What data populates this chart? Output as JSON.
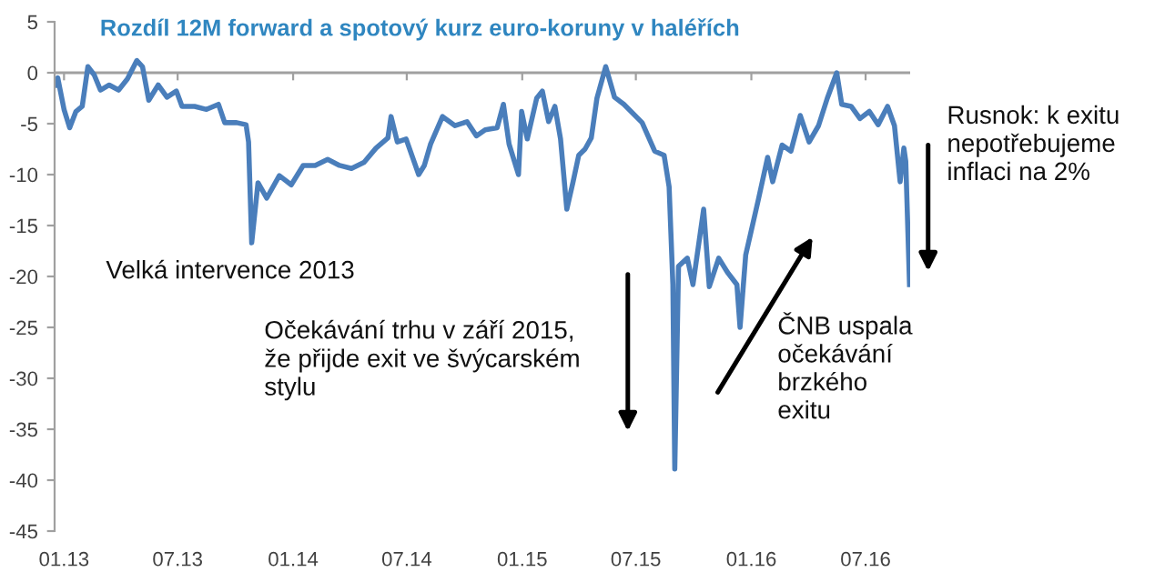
{
  "chart_data": {
    "type": "line",
    "title": "Rozdíl 12M forward a spotový kurz euro-koruny v haléřích",
    "x": [
      "2012-12-18",
      "2012-12-22",
      "2013-01-01",
      "2013-01-10",
      "2013-01-20",
      "2013-01-30",
      "2013-02-08",
      "2013-02-18",
      "2013-02-28",
      "2013-03-14",
      "2013-03-29",
      "2013-04-12",
      "2013-04-27",
      "2013-05-06",
      "2013-05-16",
      "2013-05-31",
      "2013-06-14",
      "2013-06-29",
      "2013-07-08",
      "2013-07-28",
      "2013-08-16",
      "2013-09-04",
      "2013-09-14",
      "2013-10-03",
      "2013-10-18",
      "2013-10-22",
      "2013-10-27",
      "2013-11-06",
      "2013-11-20",
      "2013-12-10",
      "2013-12-29",
      "2014-01-17",
      "2014-02-05",
      "2014-02-25",
      "2014-03-16",
      "2014-04-04",
      "2014-04-24",
      "2014-05-13",
      "2014-06-01",
      "2014-06-06",
      "2014-06-16",
      "2014-06-30",
      "2014-07-20",
      "2014-07-29",
      "2014-08-08",
      "2014-08-27",
      "2014-09-16",
      "2014-10-05",
      "2014-10-20",
      "2014-11-03",
      "2014-11-22",
      "2014-12-02",
      "2014-12-11",
      "2014-12-26",
      "2014-12-31",
      "2015-01-09",
      "2015-01-24",
      "2015-02-02",
      "2015-02-12",
      "2015-02-22",
      "2015-03-03",
      "2015-03-13",
      "2015-03-23",
      "2015-04-01",
      "2015-04-11",
      "2015-04-21",
      "2015-04-30",
      "2015-05-14",
      "2015-05-28",
      "2015-06-12",
      "2015-07-11",
      "2015-07-31",
      "2015-08-15",
      "2015-08-23",
      "2015-08-29",
      "2015-09-01",
      "2015-09-07",
      "2015-09-21",
      "2015-09-30",
      "2015-10-17",
      "2015-10-26",
      "2015-11-10",
      "2015-11-24",
      "2015-12-09",
      "2015-12-14",
      "2015-12-23",
      "2016-01-12",
      "2016-01-27",
      "2016-02-04",
      "2016-02-19",
      "2016-03-04",
      "2016-03-19",
      "2016-04-02",
      "2016-04-17",
      "2016-05-01",
      "2016-05-16",
      "2016-05-24",
      "2016-06-08",
      "2016-06-22",
      "2016-07-07",
      "2016-07-21",
      "2016-08-05",
      "2016-08-16",
      "2016-08-25",
      "2016-08-31",
      "2016-09-03",
      "2016-09-09"
    ],
    "values": [
      -1.2,
      -0.5,
      -3.6,
      -5.4,
      -3.8,
      -3.3,
      0.6,
      -0.2,
      -1.7,
      -1.2,
      -1.7,
      -0.6,
      1.2,
      0.6,
      -2.7,
      -1.2,
      -2.4,
      -1.8,
      -3.3,
      -3.3,
      -3.6,
      -3.1,
      -4.9,
      -4.9,
      -5.1,
      -6.8,
      -16.7,
      -10.8,
      -12.3,
      -10.1,
      -11,
      -9.1,
      -9.1,
      -8.5,
      -9.1,
      -9.4,
      -8.8,
      -7.4,
      -6.4,
      -4.3,
      -6.8,
      -6.5,
      -10,
      -9.1,
      -7,
      -4.3,
      -5.2,
      -4.8,
      -6.2,
      -5.6,
      -5.4,
      -3.1,
      -7,
      -10,
      -3.8,
      -6.5,
      -2.5,
      -1.8,
      -4.8,
      -3.3,
      -6.5,
      -13.4,
      -10.7,
      -8.1,
      -7.5,
      -6.4,
      -2.5,
      0.6,
      -2.4,
      -3.1,
      -4.9,
      -7.7,
      -8.1,
      -11.2,
      -20.8,
      -38.9,
      -19,
      -18.2,
      -20.8,
      -13.4,
      -21,
      -18.2,
      -19.6,
      -20.8,
      -25,
      -17.9,
      -12.5,
      -8.3,
      -10.7,
      -7.1,
      -7.7,
      -4.2,
      -6.8,
      -5.2,
      -2.5,
      0,
      -3.1,
      -3.3,
      -4.5,
      -3.8,
      -5.1,
      -3.3,
      -5.2,
      -10.7,
      -7.4,
      -8.7,
      -20.8
    ],
    "color": "#4a7ebb",
    "xlim": [
      "2012-12-17",
      "2016-09-10"
    ],
    "xticks": [
      {
        "value": "2013-01-01",
        "label": "01.13"
      },
      {
        "value": "2013-07-01",
        "label": "07.13"
      },
      {
        "value": "2014-01-01",
        "label": "01.14"
      },
      {
        "value": "2014-07-01",
        "label": "07.14"
      },
      {
        "value": "2015-01-01",
        "label": "01.15"
      },
      {
        "value": "2015-07-01",
        "label": "07.15"
      },
      {
        "value": "2016-01-01",
        "label": "01.16"
      },
      {
        "value": "2016-07-01",
        "label": "07.16"
      }
    ],
    "ylim": [
      -45,
      5
    ],
    "yticks": [
      -45,
      -40,
      -35,
      -30,
      -25,
      -20,
      -15,
      -10,
      -5,
      0,
      5
    ],
    "grid": false,
    "annotations": [
      "Velká intervence 2013",
      "Očekávání trhu v září 2015,\nže přijde exit ve švýcarském\nstylu",
      "ČNB uspala\nočekávání\nbrzkého\nexitu",
      "Rusnok: k exitu\nnepotřebujeme\ninflaci na 2%"
    ],
    "ref_lines": [
      {
        "axis": "y",
        "value": 0,
        "color": "#a0a0a0"
      }
    ]
  }
}
